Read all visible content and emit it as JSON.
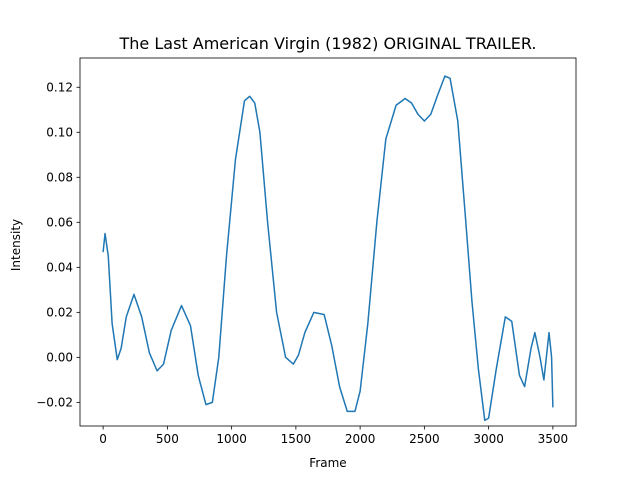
{
  "chart_data": {
    "type": "line",
    "title": "The Last American Virgin (1982) ORIGINAL TRAILER.",
    "xlabel": "Frame",
    "ylabel": "Intensity",
    "xlim": [
      -180,
      3680
    ],
    "ylim": [
      -0.0305,
      0.133
    ],
    "xticks": [
      0,
      500,
      1000,
      1500,
      2000,
      2500,
      3000,
      3500
    ],
    "yticks": [
      -0.02,
      0.0,
      0.02,
      0.04,
      0.06,
      0.08,
      0.1,
      0.12
    ],
    "ytick_labels": [
      "−0.02",
      "0.00",
      "0.02",
      "0.04",
      "0.06",
      "0.08",
      "0.10",
      "0.12"
    ],
    "grid": false,
    "series": [
      {
        "color": "#1f77b4",
        "x": [
          0,
          15,
          40,
          70,
          110,
          140,
          180,
          240,
          300,
          360,
          420,
          470,
          530,
          610,
          680,
          740,
          800,
          850,
          900,
          960,
          1030,
          1100,
          1140,
          1180,
          1220,
          1280,
          1350,
          1420,
          1480,
          1520,
          1570,
          1640,
          1720,
          1780,
          1840,
          1900,
          1960,
          2000,
          2060,
          2130,
          2200,
          2280,
          2350,
          2400,
          2450,
          2500,
          2550,
          2600,
          2660,
          2700,
          2760,
          2820,
          2870,
          2920,
          2970,
          3000,
          3060,
          3130,
          3180,
          3240,
          3280,
          3330,
          3360,
          3400,
          3430,
          3470,
          3490,
          3500
        ],
        "y": [
          0.047,
          0.055,
          0.045,
          0.015,
          -0.001,
          0.004,
          0.018,
          0.028,
          0.018,
          0.002,
          -0.006,
          -0.003,
          0.012,
          0.023,
          0.014,
          -0.008,
          -0.021,
          -0.02,
          0.0,
          0.045,
          0.088,
          0.114,
          0.116,
          0.113,
          0.1,
          0.06,
          0.02,
          0.0,
          -0.003,
          0.001,
          0.011,
          0.02,
          0.019,
          0.005,
          -0.013,
          -0.024,
          -0.024,
          -0.015,
          0.015,
          0.06,
          0.097,
          0.112,
          0.115,
          0.113,
          0.108,
          0.105,
          0.108,
          0.116,
          0.125,
          0.124,
          0.105,
          0.062,
          0.025,
          -0.005,
          -0.028,
          -0.027,
          -0.005,
          0.018,
          0.016,
          -0.008,
          -0.013,
          0.004,
          0.011,
          0.0,
          -0.01,
          0.011,
          0.0,
          -0.022
        ]
      }
    ]
  }
}
